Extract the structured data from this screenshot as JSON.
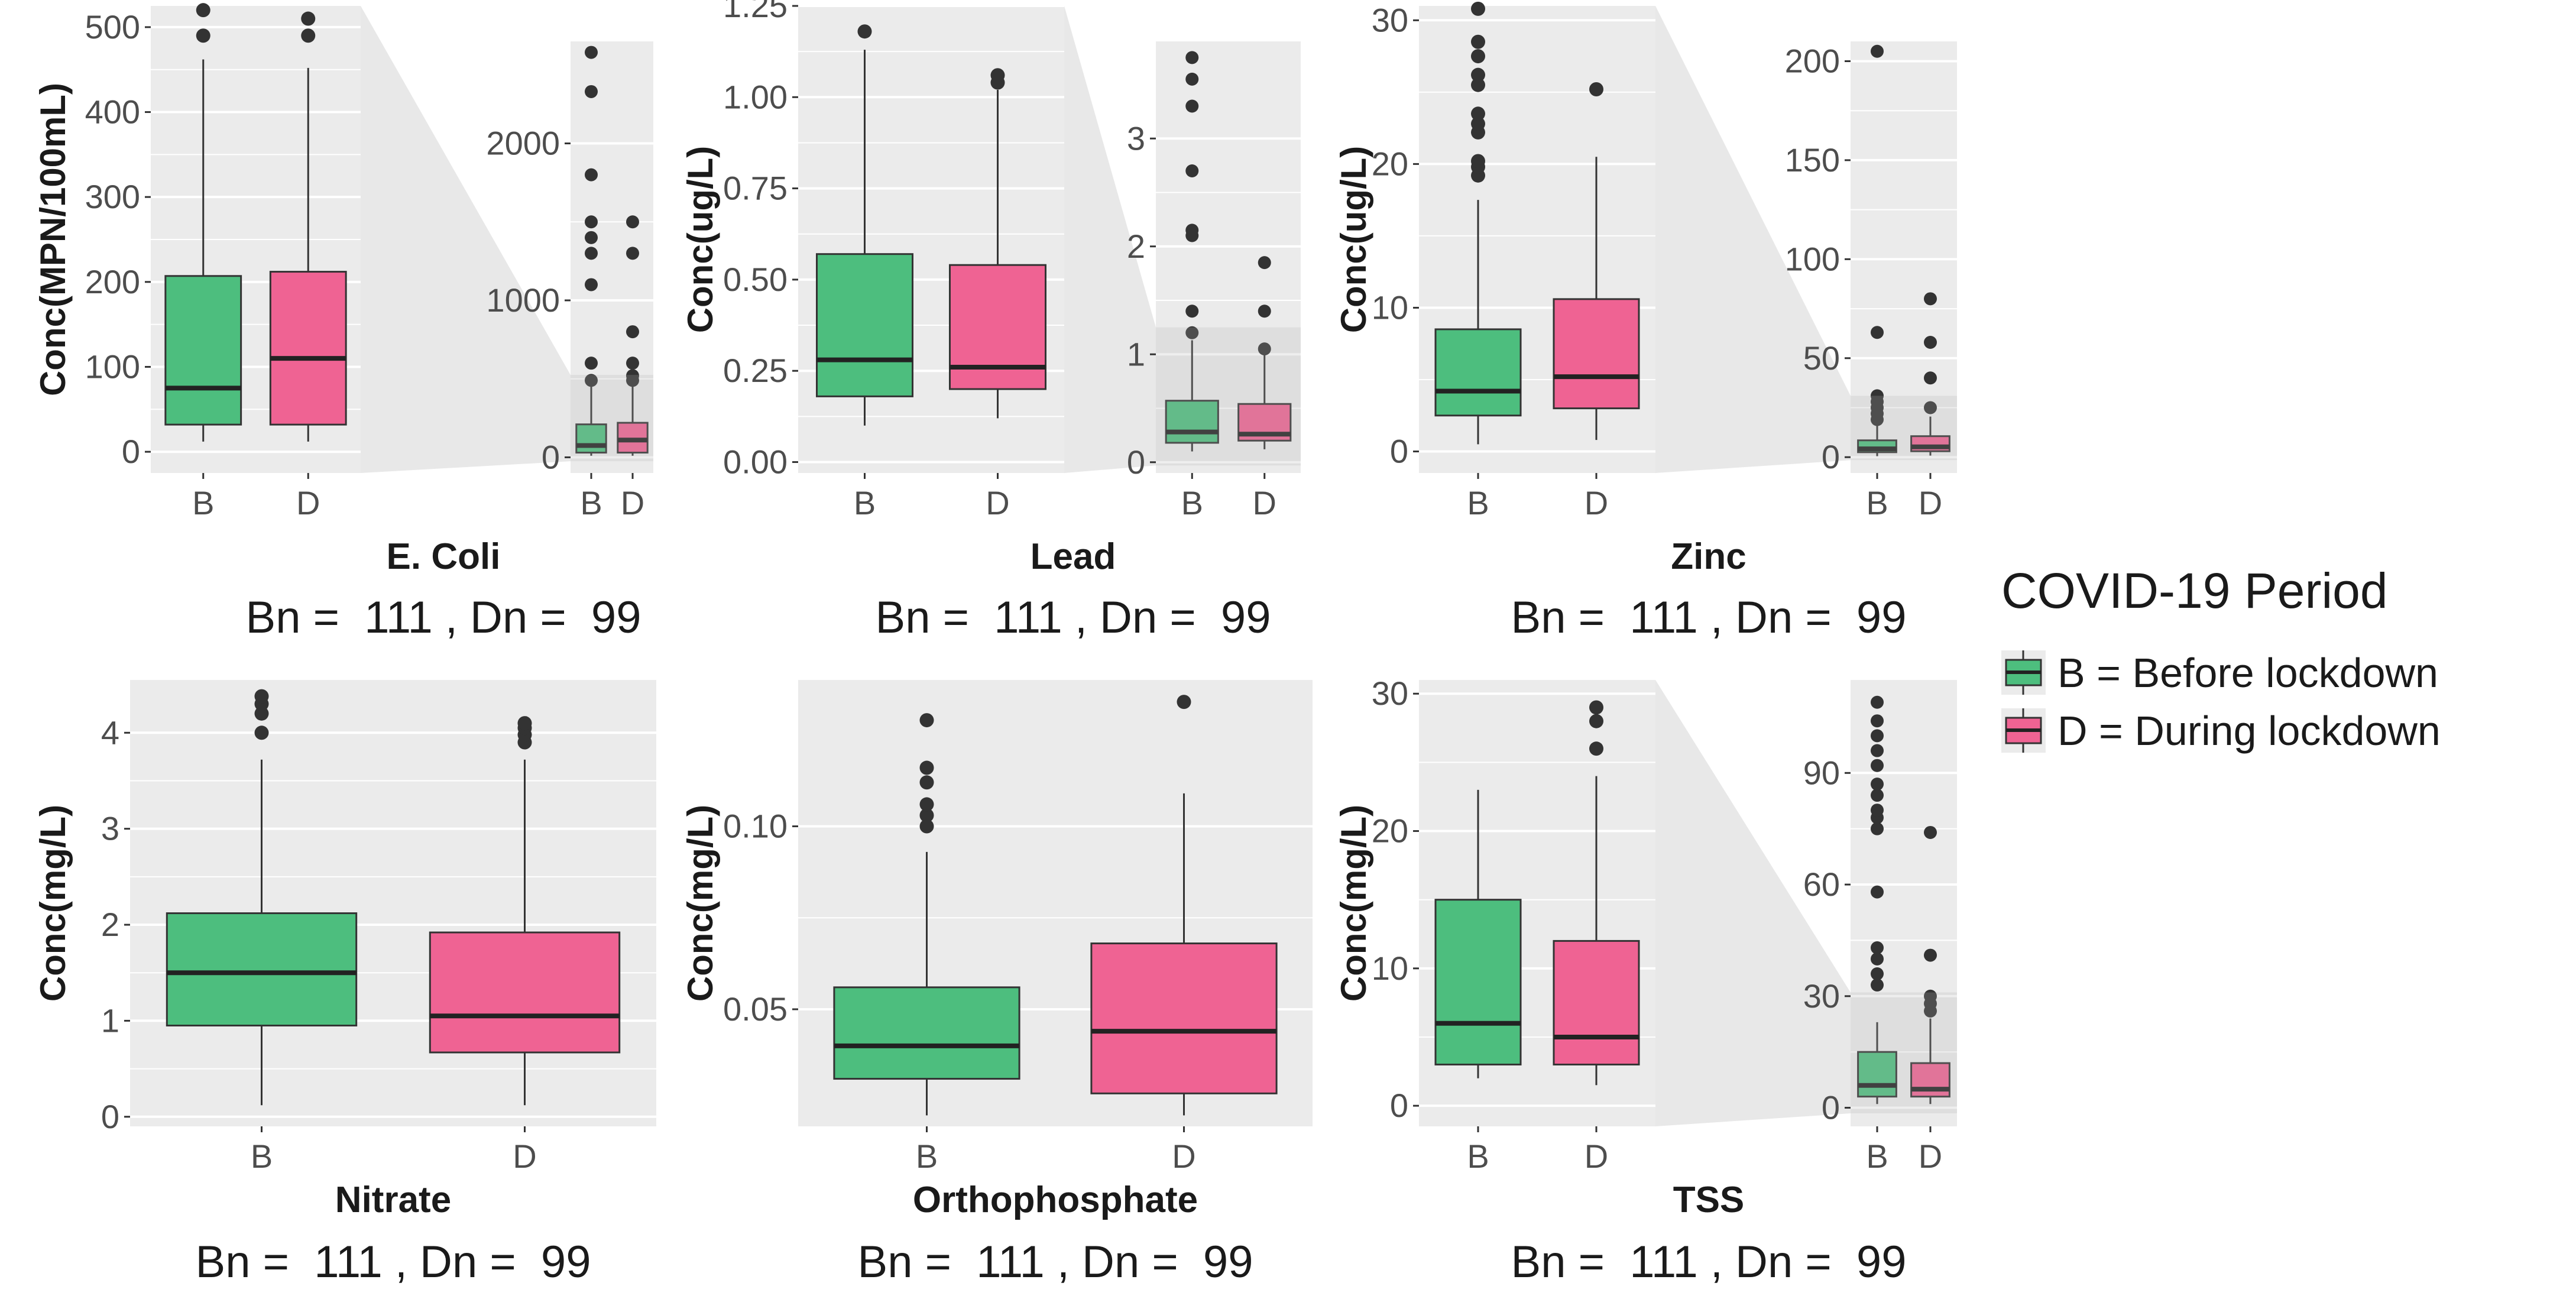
{
  "figure": {
    "label": "COVID-19 water quality boxplots"
  },
  "colors": {
    "before": "#4DBE7E",
    "during": "#EF6393",
    "panel_bg": "#EBEBEB",
    "grid": "#FFFFFF",
    "outlier": "#333333",
    "median": "#222222",
    "zoom": "#E8E8E8"
  },
  "legend": {
    "title": "COVID-19 Period",
    "entries": [
      {
        "key": "B",
        "label": "B = Before lockdown",
        "color": "#4DBE7E"
      },
      {
        "key": "D",
        "label": "D = During lockdown",
        "color": "#EF6393"
      }
    ]
  },
  "chart_data": [
    {
      "type": "box",
      "title": "E. Coli",
      "ylabel": "Conc(MPN/100mL)",
      "n_text": "Bn =  111 , Dn =  99",
      "categories": [
        "B",
        "D"
      ],
      "ylim": [
        -25,
        525
      ],
      "yticks": [
        0,
        100,
        200,
        300,
        400,
        500
      ],
      "boxes": [
        {
          "q1": 32,
          "median": 75,
          "q3": 207,
          "low": 12,
          "high": 462,
          "outliers": [
            490,
            520
          ]
        },
        {
          "q1": 32,
          "median": 110,
          "q3": 212,
          "low": 12,
          "high": 452,
          "outliers": [
            490,
            510
          ]
        }
      ],
      "inset": {
        "ylim": [
          -100,
          2650
        ],
        "yticks": [
          0,
          1000,
          2000
        ],
        "boxes": [
          {
            "q1": 30,
            "median": 75,
            "q3": 210,
            "low": 10,
            "high": 460,
            "outliers": [
              490,
              600,
              1100,
              1300,
              1400,
              1500,
              1800,
              2330,
              2580
            ]
          },
          {
            "q1": 30,
            "median": 110,
            "q3": 220,
            "low": 10,
            "high": 450,
            "outliers": [
              490,
              520,
              600,
              800,
              1300,
              1500
            ]
          }
        ]
      }
    },
    {
      "type": "box",
      "title": "Lead",
      "ylabel": "Conc(ug/L)",
      "n_text": "Bn =  111 , Dn =  99",
      "categories": [
        "B",
        "D"
      ],
      "ylim": [
        -0.03,
        1.25
      ],
      "yticks": [
        0.0,
        0.25,
        0.5,
        0.75,
        1.0,
        1.25
      ],
      "ytick_labels": [
        "0.00",
        "0.25",
        "0.50",
        "0.75",
        "1.00",
        "1.25"
      ],
      "boxes": [
        {
          "q1": 0.18,
          "median": 0.28,
          "q3": 0.57,
          "low": 0.1,
          "high": 1.13,
          "outliers": [
            1.18
          ]
        },
        {
          "q1": 0.2,
          "median": 0.26,
          "q3": 0.54,
          "low": 0.12,
          "high": 1.02,
          "outliers": [
            1.04,
            1.06
          ]
        }
      ],
      "inset": {
        "ylim": [
          -0.1,
          3.9
        ],
        "yticks": [
          0,
          1,
          2,
          3
        ],
        "boxes": [
          {
            "q1": 0.18,
            "median": 0.28,
            "q3": 0.57,
            "low": 0.1,
            "high": 1.13,
            "outliers": [
              1.2,
              1.4,
              2.1,
              2.15,
              2.7,
              3.3,
              3.55,
              3.75
            ]
          },
          {
            "q1": 0.2,
            "median": 0.26,
            "q3": 0.54,
            "low": 0.12,
            "high": 1.02,
            "outliers": [
              1.05,
              1.4,
              1.85
            ]
          }
        ]
      }
    },
    {
      "type": "box",
      "title": "Zinc",
      "ylabel": "Conc(ug/L)",
      "n_text": "Bn =  111 , Dn =  99",
      "categories": [
        "B",
        "D"
      ],
      "ylim": [
        -1.5,
        31
      ],
      "yticks": [
        0,
        10,
        20,
        30
      ],
      "boxes": [
        {
          "q1": 2.5,
          "median": 4.2,
          "q3": 8.5,
          "low": 0.5,
          "high": 17.5,
          "outliers": [
            19.2,
            19.8,
            20.2,
            22.2,
            22.8,
            23.5,
            25.5,
            26.2,
            27.5,
            28.5,
            30.8
          ]
        },
        {
          "q1": 3.0,
          "median": 5.2,
          "q3": 10.6,
          "low": 0.8,
          "high": 20.5,
          "outliers": [
            25.2
          ]
        }
      ],
      "inset": {
        "ylim": [
          -8,
          210
        ],
        "yticks": [
          0,
          50,
          100,
          150,
          200
        ],
        "boxes": [
          {
            "q1": 2.5,
            "median": 4.2,
            "q3": 8.5,
            "low": 0.5,
            "high": 17.5,
            "outliers": [
              19,
              22,
              25,
              28,
              31,
              63,
              205
            ]
          },
          {
            "q1": 3.0,
            "median": 5.2,
            "q3": 10.6,
            "low": 0.8,
            "high": 20.5,
            "outliers": [
              25,
              40,
              58,
              80
            ]
          }
        ]
      }
    },
    {
      "type": "box",
      "title": "Nitrate",
      "ylabel": "Conc(mg/L)",
      "n_text": "Bn =  111 , Dn =  99",
      "categories": [
        "B",
        "D"
      ],
      "ylim": [
        -0.1,
        4.55
      ],
      "yticks": [
        0,
        1,
        2,
        3,
        4
      ],
      "boxes": [
        {
          "q1": 0.95,
          "median": 1.5,
          "q3": 2.12,
          "low": 0.12,
          "high": 3.72,
          "outliers": [
            4.0,
            4.2,
            4.3,
            4.38
          ]
        },
        {
          "q1": 0.67,
          "median": 1.05,
          "q3": 1.92,
          "low": 0.12,
          "high": 3.72,
          "outliers": [
            3.9,
            3.98,
            4.05,
            4.1
          ]
        }
      ]
    },
    {
      "type": "box",
      "title": "Orthophosphate",
      "ylabel": "Conc(mg/L)",
      "n_text": "Bn =  111 , Dn =  99",
      "categories": [
        "B",
        "D"
      ],
      "ylim": [
        0.018,
        0.14
      ],
      "yticks": [
        0.05,
        0.1
      ],
      "ytick_labels": [
        "0.05",
        "0.10"
      ],
      "boxes": [
        {
          "q1": 0.031,
          "median": 0.04,
          "q3": 0.056,
          "low": 0.021,
          "high": 0.093,
          "outliers": [
            0.1,
            0.103,
            0.106,
            0.112,
            0.116,
            0.129
          ]
        },
        {
          "q1": 0.027,
          "median": 0.044,
          "q3": 0.068,
          "low": 0.021,
          "high": 0.109,
          "outliers": [
            0.134
          ]
        }
      ]
    },
    {
      "type": "box",
      "title": "TSS",
      "ylabel": "Conc(mg/L)",
      "n_text": "Bn =  111 , Dn =  99",
      "categories": [
        "B",
        "D"
      ],
      "ylim": [
        -1.5,
        31
      ],
      "yticks": [
        0,
        10,
        20,
        30
      ],
      "boxes": [
        {
          "q1": 3,
          "median": 6,
          "q3": 15,
          "low": 2,
          "high": 23,
          "outliers": []
        },
        {
          "q1": 3,
          "median": 5,
          "q3": 12,
          "low": 1.5,
          "high": 24,
          "outliers": [
            26,
            28,
            29
          ]
        }
      ],
      "inset": {
        "ylim": [
          -5,
          115
        ],
        "yticks": [
          0,
          30,
          60,
          90
        ],
        "boxes": [
          {
            "q1": 3,
            "median": 6,
            "q3": 15,
            "low": 1,
            "high": 23,
            "outliers": [
              33,
              36,
              40,
              43,
              58,
              75,
              78,
              80,
              84,
              87,
              92,
              96,
              100,
              104,
              109
            ]
          },
          {
            "q1": 3,
            "median": 5,
            "q3": 12,
            "low": 1,
            "high": 24,
            "outliers": [
              26,
              28,
              30,
              41,
              74
            ]
          }
        ]
      }
    }
  ]
}
